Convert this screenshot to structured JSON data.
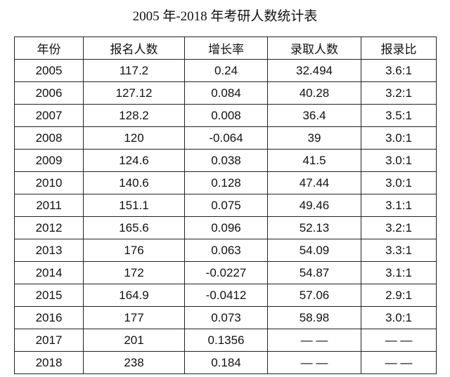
{
  "header": {
    "title": "2005 年-2018 年考研人数统计表"
  },
  "table": {
    "columns": [
      "年份",
      "报名人数",
      "增长率",
      "录取人数",
      "报录比"
    ],
    "rows": [
      [
        "2005",
        "117.2",
        "0.24",
        "32.494",
        "3.6:1"
      ],
      [
        "2006",
        "127.12",
        "0.084",
        "40.28",
        "3.2:1"
      ],
      [
        "2007",
        "128.2",
        "0.008",
        "36.4",
        "3.5:1"
      ],
      [
        "2008",
        "120",
        "-0.064",
        "39",
        "3.0:1"
      ],
      [
        "2009",
        "124.6",
        "0.038",
        "41.5",
        "3.0:1"
      ],
      [
        "2010",
        "140.6",
        "0.128",
        "47.44",
        "3.0:1"
      ],
      [
        "2011",
        "151.1",
        "0.075",
        "49.46",
        "3.1:1"
      ],
      [
        "2012",
        "165.6",
        "0.096",
        "52.13",
        "3.2:1"
      ],
      [
        "2013",
        "176",
        "0.063",
        "54.09",
        "3.3:1"
      ],
      [
        "2014",
        "172",
        "-0.0227",
        "54.87",
        "3.1:1"
      ],
      [
        "2015",
        "164.9",
        "-0.0412",
        "57.06",
        "2.9:1"
      ],
      [
        "2016",
        "177",
        "0.073",
        "58.98",
        "3.0:1"
      ],
      [
        "2017",
        "201",
        "0.1356",
        "— —",
        "— —"
      ],
      [
        "2018",
        "238",
        "0.184",
        "— —",
        "— —"
      ]
    ]
  }
}
